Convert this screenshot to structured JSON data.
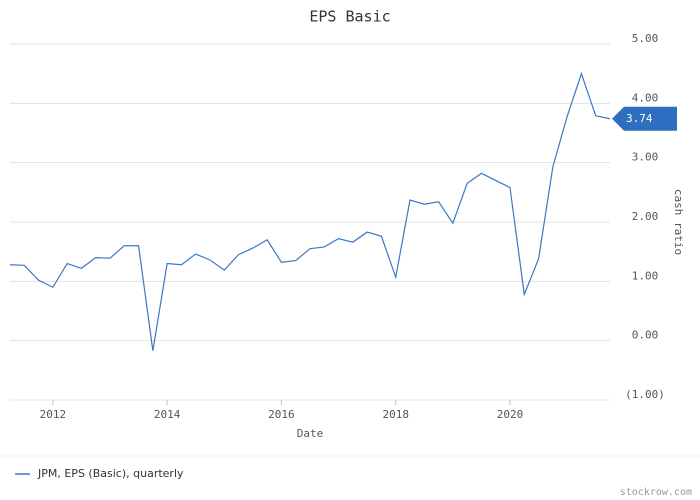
{
  "chart_data": {
    "type": "line",
    "title": "EPS Basic",
    "x_label": "Date",
    "y_label": "cash ratio",
    "x": [
      2011.25,
      2011.5,
      2011.75,
      2012.0,
      2012.25,
      2012.5,
      2012.75,
      2013.0,
      2013.25,
      2013.5,
      2013.75,
      2014.0,
      2014.25,
      2014.5,
      2014.75,
      2015.0,
      2015.25,
      2015.5,
      2015.75,
      2016.0,
      2016.25,
      2016.5,
      2016.75,
      2017.0,
      2017.25,
      2017.5,
      2017.75,
      2018.0,
      2018.25,
      2018.5,
      2018.75,
      2019.0,
      2019.25,
      2019.5,
      2019.75,
      2020.0,
      2020.25,
      2020.5,
      2020.75,
      2021.0,
      2021.25,
      2021.5,
      2021.75
    ],
    "series": [
      {
        "name": "JPM, EPS (Basic), quarterly",
        "color": "#3a78c3",
        "values": [
          1.28,
          1.27,
          1.02,
          0.9,
          1.3,
          1.22,
          1.4,
          1.39,
          1.6,
          1.6,
          -0.17,
          1.3,
          1.28,
          1.46,
          1.36,
          1.19,
          1.45,
          1.56,
          1.7,
          1.32,
          1.35,
          1.55,
          1.58,
          1.72,
          1.66,
          1.83,
          1.76,
          1.07,
          2.37,
          2.3,
          2.34,
          1.98,
          2.65,
          2.82,
          2.7,
          2.58,
          0.78,
          1.38,
          2.93,
          3.78,
          4.5,
          3.79,
          3.74
        ]
      }
    ],
    "xlim": [
      2011.25,
      2021.75
    ],
    "xticks": [
      2012,
      2014,
      2016,
      2018,
      2020
    ],
    "ylim": [
      -1,
      5
    ],
    "yticks": [
      {
        "value": -1,
        "label": "(1.00)"
      },
      {
        "value": 0,
        "label": "0.00"
      },
      {
        "value": 1,
        "label": "1.00"
      },
      {
        "value": 2,
        "label": "2.00"
      },
      {
        "value": 3,
        "label": "3.00"
      },
      {
        "value": 4,
        "label": "4.00"
      },
      {
        "value": 5,
        "label": "5.00"
      }
    ],
    "grid": true,
    "legend": "bottom-left",
    "source": "stockrow.com"
  }
}
